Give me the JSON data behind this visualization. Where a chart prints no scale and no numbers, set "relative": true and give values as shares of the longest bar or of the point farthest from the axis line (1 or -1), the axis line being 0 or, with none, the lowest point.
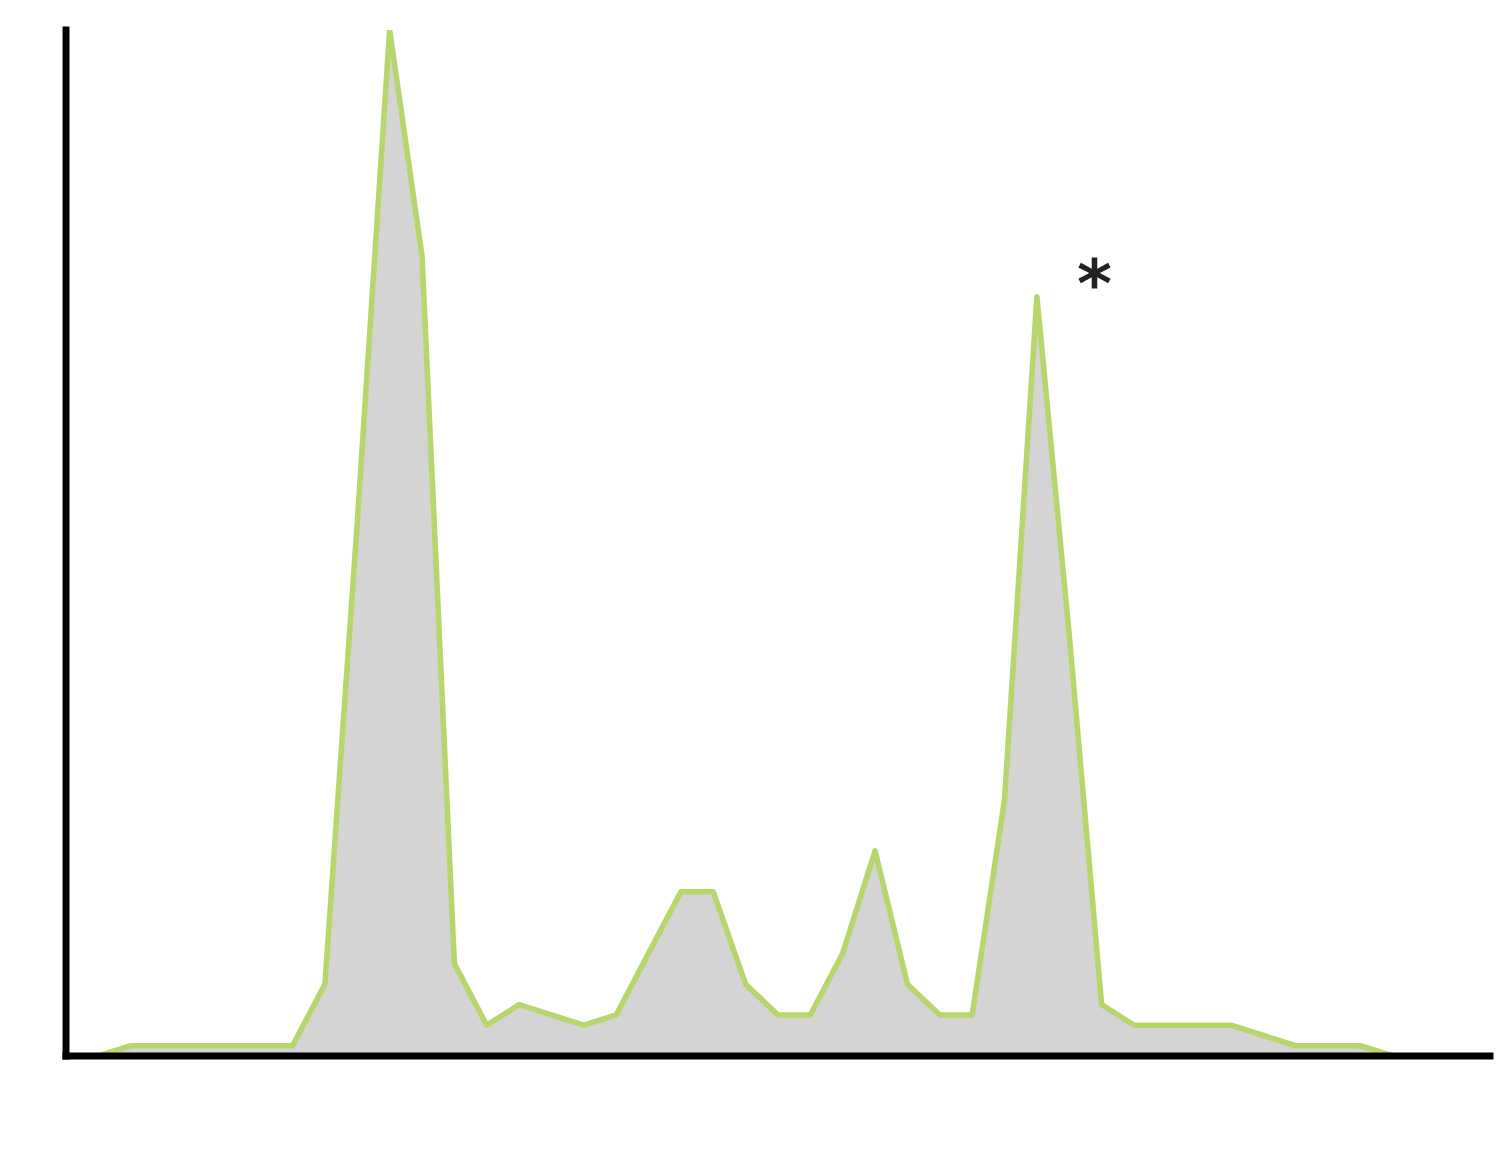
{
  "chart_data": {
    "type": "area",
    "relative": true,
    "categories": [
      null,
      null,
      null,
      null,
      null,
      null,
      null,
      null,
      null,
      null,
      null,
      null,
      null,
      null,
      null,
      null,
      null,
      null,
      null,
      null,
      null,
      null,
      null,
      null,
      null,
      null,
      null,
      null,
      null,
      null,
      null,
      null,
      null,
      null,
      null,
      null,
      null,
      null,
      null,
      null,
      null,
      null,
      null,
      null,
      null
    ],
    "series": [
      {
        "color": "#b8d66e",
        "values": [
          0.0,
          0.0,
          0.01,
          0.01,
          0.01,
          0.01,
          0.01,
          0.01,
          0.07,
          0.52,
          1.0,
          0.78,
          0.09,
          0.03,
          0.05,
          0.04,
          0.03,
          0.04,
          0.1,
          0.16,
          0.16,
          0.07,
          0.04,
          0.04,
          0.1,
          0.2,
          0.07,
          0.04,
          0.04,
          0.25,
          0.74,
          0.41,
          0.05,
          0.03,
          0.03,
          0.03,
          0.03,
          0.02,
          0.01,
          0.01,
          0.01,
          0.0,
          0.0,
          0.0,
          0.0
        ]
      }
    ],
    "annotations": [
      "*"
    ]
  }
}
